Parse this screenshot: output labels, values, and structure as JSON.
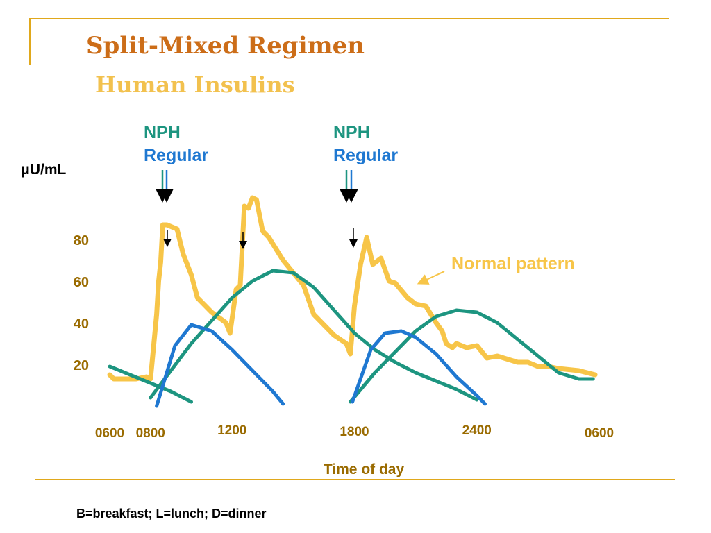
{
  "slide": {
    "title": "Split-Mixed Regimen",
    "subtitle": "Human Insulins",
    "footnote": "B=breakfast; L=lunch; D=dinner"
  },
  "colors": {
    "title": "#cc6d18",
    "subtitle": "#f2c14e",
    "accent_line": "#e0a81c",
    "tick_text": "#9a6b00",
    "normal": "#f7c548",
    "nph": "#1d9580",
    "regular": "#1f78d1"
  },
  "chart_data": {
    "type": "line",
    "title": "",
    "ylabel": "μU/mL",
    "xlabel": "Time of day",
    "ylim": [
      0,
      100
    ],
    "y_ticks": [
      20,
      40,
      60,
      80
    ],
    "x_ticks": [
      "0600",
      "0800",
      "1200",
      "1800",
      "2400",
      "0600"
    ],
    "x_tick_hours": [
      6,
      8,
      12,
      18,
      24,
      30
    ],
    "injection_labels": [
      {
        "nph": "NPH",
        "regular": "Regular",
        "hour": 8
      },
      {
        "nph": "NPH",
        "regular": "Regular",
        "hour": 17.8
      }
    ],
    "meal_arrows_hours": [
      8,
      12,
      18
    ],
    "annotation": {
      "text": "Normal pattern",
      "points_to_hour": 21.5,
      "points_to_value": 61
    },
    "series": [
      {
        "name": "Normal pattern",
        "color": "#f7c548",
        "x": [
          6,
          6.2,
          6.6,
          7.3,
          7.8,
          8.0,
          8.3,
          8.4,
          8.5,
          8.6,
          8.8,
          9.3,
          9.6,
          10.0,
          10.3,
          11.0,
          11.7,
          11.9,
          12.2,
          12.4,
          12.6,
          12.8,
          13.0,
          13.2,
          13.5,
          13.8,
          14.5,
          15.5,
          16.0,
          17.0,
          17.6,
          17.8,
          18.0,
          18.3,
          18.6,
          18.9,
          19.3,
          19.7,
          20.0,
          20.6,
          21.0,
          21.5,
          22.0,
          22.3,
          22.5,
          22.8,
          23.0,
          23.5,
          24.0,
          24.5,
          25.0,
          26.0,
          26.5,
          27.0,
          27.5,
          28.0,
          29.0,
          29.8
        ],
        "values": [
          15,
          13,
          13,
          13,
          14,
          13,
          44,
          60,
          69,
          87,
          87,
          85,
          73,
          63,
          52,
          45,
          40,
          35,
          56,
          58,
          96,
          95,
          100,
          99,
          84,
          81,
          70,
          58,
          44,
          34,
          30,
          25,
          48,
          68,
          81,
          68,
          71,
          60,
          59,
          52,
          49,
          48,
          40,
          36,
          30,
          28,
          30,
          28,
          29,
          23,
          24,
          21,
          21,
          19,
          19,
          18,
          17,
          15
        ]
      },
      {
        "name": "NPH",
        "color": "#1d9580",
        "x": [
          6,
          7,
          8,
          9,
          10
        ],
        "values": [
          19,
          15,
          11,
          7,
          2
        ]
      },
      {
        "name": "NPH",
        "color": "#1d9580",
        "x": [
          8,
          9,
          10,
          11,
          12,
          13,
          14,
          15,
          16,
          17,
          18,
          19,
          20,
          21,
          22,
          23,
          24
        ],
        "values": [
          4,
          17,
          30,
          41,
          52,
          60,
          65,
          64,
          57,
          46,
          35,
          27,
          21,
          16,
          12,
          8,
          3
        ]
      },
      {
        "name": "NPH",
        "color": "#1d9580",
        "x": [
          17.8,
          19,
          20,
          21,
          22,
          23,
          24,
          25,
          26,
          27,
          28,
          29,
          29.7
        ],
        "values": [
          2,
          16,
          26,
          36,
          43,
          46,
          45,
          40,
          32,
          24,
          16,
          13,
          13
        ]
      },
      {
        "name": "Regular",
        "color": "#1f78d1",
        "x": [
          8.3,
          9.2,
          10.0,
          11.0,
          12.0,
          13.0,
          14.0,
          14.5
        ],
        "values": [
          0,
          29,
          39,
          36,
          27,
          17,
          7,
          1
        ]
      },
      {
        "name": "Regular",
        "color": "#1f78d1",
        "x": [
          17.9,
          18.8,
          19.5,
          20.3,
          21.0,
          22.0,
          23.0,
          24.0,
          24.4
        ],
        "values": [
          2,
          27,
          35,
          36,
          33,
          25,
          14,
          5,
          1
        ]
      }
    ]
  }
}
